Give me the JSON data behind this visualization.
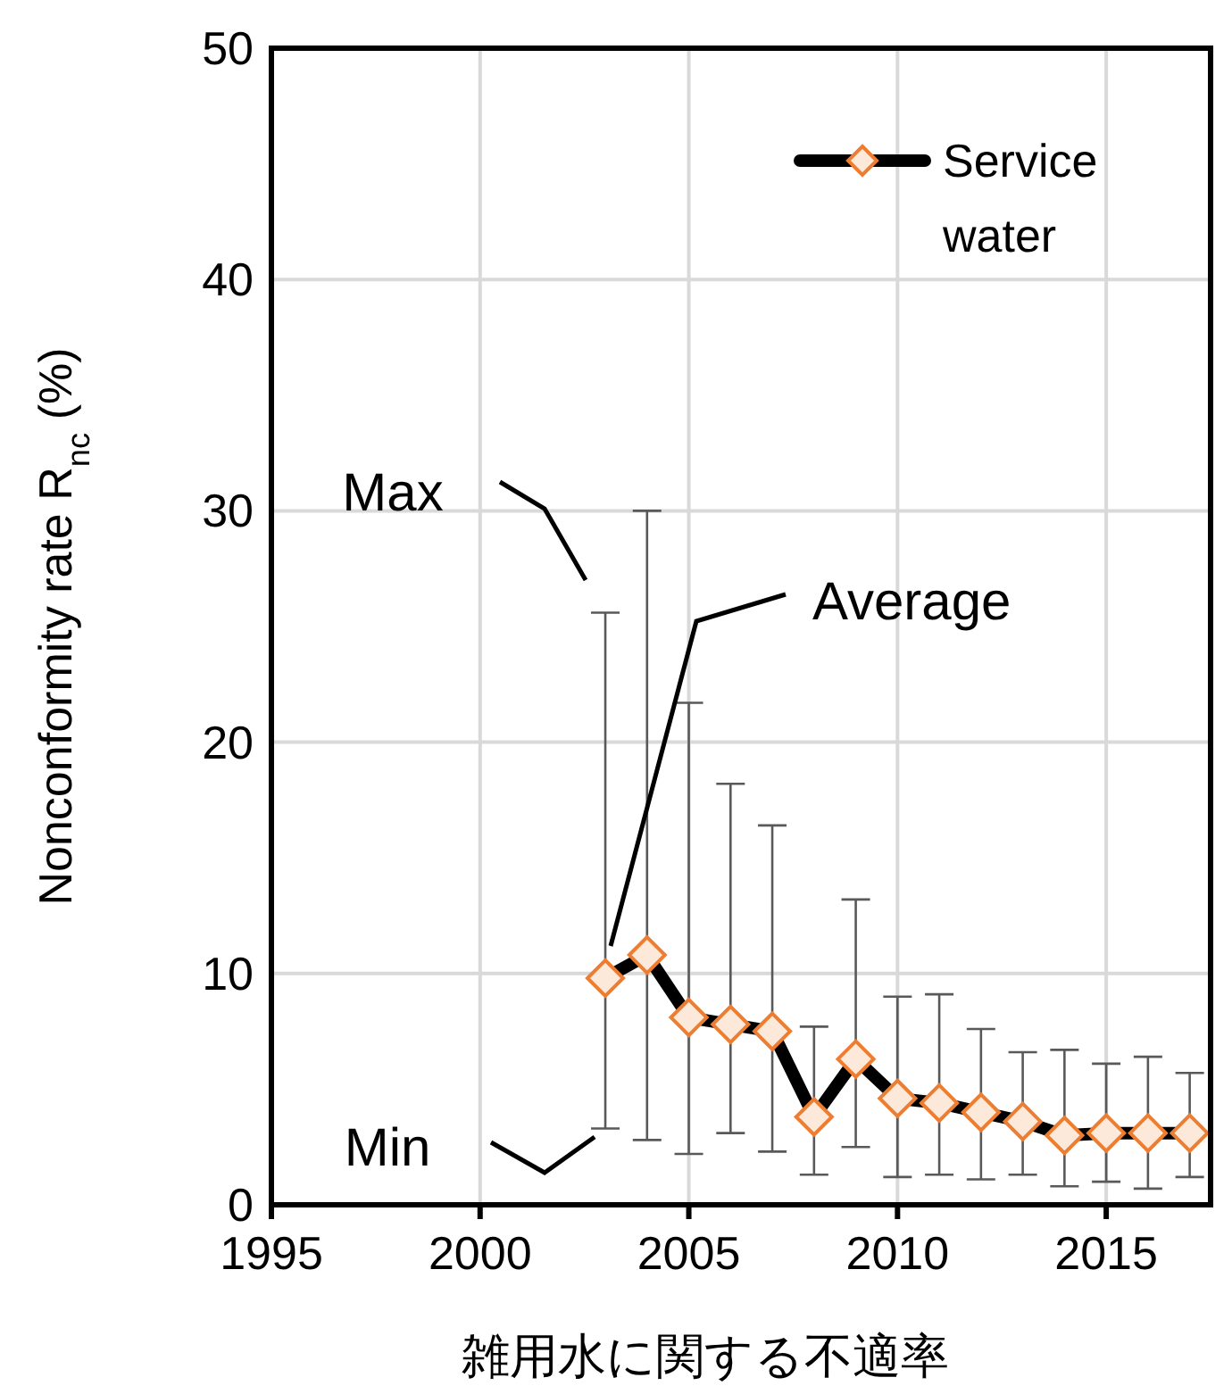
{
  "chart_data": {
    "type": "line",
    "xlabel": "雑用水に関する不適率",
    "ylabel": "Nonconformity rate R$_{nc}$ (%)",
    "x": [
      2003,
      2004,
      2005,
      2006,
      2007,
      2008,
      2009,
      2010,
      2011,
      2012,
      2013,
      2014,
      2015,
      2016,
      2017
    ],
    "series": [
      {
        "name": "Service water",
        "color": "#000000",
        "values": [
          9.8,
          10.8,
          8.1,
          7.8,
          7.5,
          3.8,
          6.3,
          4.6,
          4.4,
          4.0,
          3.6,
          3.0,
          3.1,
          3.1,
          3.1
        ],
        "errors": [
          [
            3.3,
            25.6
          ],
          [
            2.8,
            30.0
          ],
          [
            2.2,
            21.7
          ],
          [
            3.1,
            18.2
          ],
          [
            2.3,
            16.4
          ],
          [
            1.3,
            7.7
          ],
          [
            2.5,
            13.2
          ],
          [
            1.2,
            9.0
          ],
          [
            1.3,
            9.1
          ],
          [
            1.1,
            7.6
          ],
          [
            1.3,
            6.6
          ],
          [
            0.8,
            6.7
          ],
          [
            1.0,
            6.1
          ],
          [
            0.7,
            6.4
          ],
          [
            1.2,
            5.7
          ]
        ]
      }
    ],
    "xlim": [
      1995,
      2017.5
    ],
    "xticks": [
      1995,
      2000,
      2005,
      2010,
      2015
    ],
    "ylim": [
      0,
      50
    ],
    "yticks": [
      0,
      10,
      20,
      30,
      40,
      50
    ],
    "grid": true,
    "legend": "top right",
    "marker": "diamond",
    "line_style": "solid",
    "annotations": [
      "Max",
      "Average",
      "Min"
    ]
  }
}
